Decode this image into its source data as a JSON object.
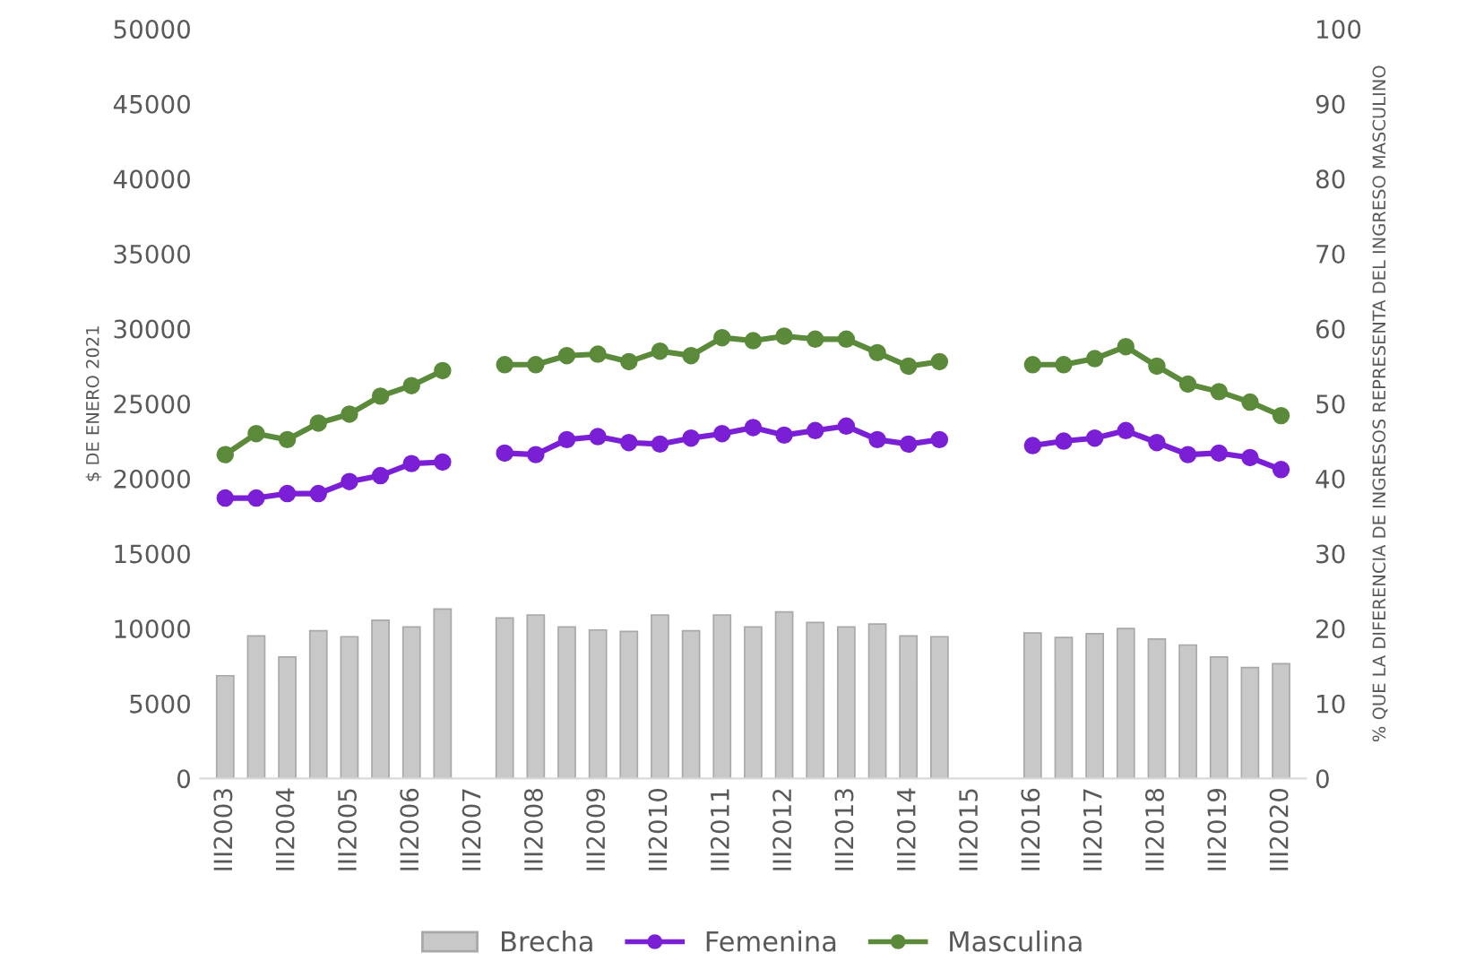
{
  "chart_data": {
    "type": "line",
    "ylabel": "$ DE ENERO 2021",
    "y2label": "% QUE LA DIFERENCIA DE INGRESOS REPRESENTA DEL INGRESO MASCULINO",
    "categories": [
      "III2003",
      null,
      "III2004",
      null,
      "III2005",
      null,
      "III2006",
      null,
      "III2007",
      null,
      "III2008",
      null,
      "III2009",
      null,
      "III2010",
      null,
      "III2011",
      null,
      "III2012",
      null,
      "III2013",
      null,
      "III2014",
      null,
      "III2015",
      null,
      "III2016",
      null,
      "III2017",
      null,
      "III2018",
      null,
      "III2019",
      null,
      "III2020"
    ],
    "series": [
      {
        "name": "Brecha",
        "type": "bar",
        "axis": "y2",
        "color": "#c8c8c8",
        "values": [
          13.7,
          19.0,
          16.2,
          19.7,
          18.9,
          21.1,
          20.2,
          22.6,
          null,
          21.4,
          21.8,
          20.2,
          19.8,
          19.6,
          21.8,
          19.7,
          21.8,
          20.2,
          22.2,
          20.8,
          20.2,
          20.6,
          19.0,
          18.9,
          null,
          null,
          19.4,
          18.8,
          19.3,
          20.0,
          18.6,
          17.8,
          16.2,
          14.8,
          15.3
        ]
      },
      {
        "name": "Femenina",
        "color": "#7b1fd6",
        "values": [
          18700,
          18700,
          19000,
          19000,
          19800,
          20200,
          21000,
          21100,
          null,
          21700,
          21600,
          22600,
          22800,
          22400,
          22300,
          22700,
          23000,
          23400,
          22900,
          23200,
          23500,
          22600,
          22300,
          22600,
          null,
          null,
          22200,
          22500,
          22700,
          23200,
          22400,
          21600,
          21700,
          21400,
          20600
        ]
      },
      {
        "name": "Masculina",
        "color": "#5a8a3a",
        "values": [
          21600,
          23000,
          22600,
          23700,
          24300,
          25500,
          26200,
          27200,
          null,
          27600,
          27600,
          28200,
          28300,
          27800,
          28500,
          28200,
          29400,
          29200,
          29500,
          29300,
          29300,
          28400,
          27500,
          27800,
          null,
          null,
          27600,
          27600,
          28000,
          28800,
          27500,
          26300,
          25800,
          25100,
          24200
        ]
      }
    ],
    "ylim": [
      0,
      50000
    ],
    "yticks": [
      0,
      5000,
      10000,
      15000,
      20000,
      25000,
      30000,
      35000,
      40000,
      45000,
      50000
    ],
    "y2lim": [
      0,
      100
    ],
    "y2ticks": [
      0,
      10,
      20,
      30,
      40,
      50,
      60,
      70,
      80,
      90,
      100
    ],
    "marker": "circle",
    "line_style": "solid",
    "grid": false,
    "legend": "bottom"
  }
}
